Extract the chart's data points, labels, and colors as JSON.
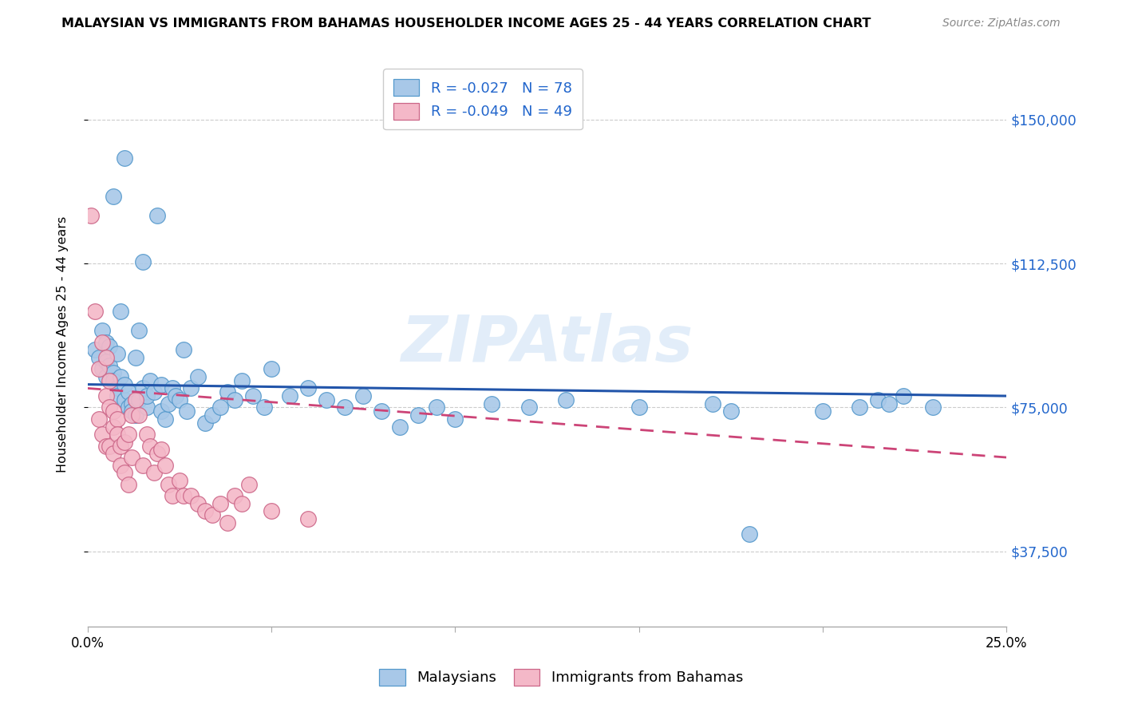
{
  "title": "MALAYSIAN VS IMMIGRANTS FROM BAHAMAS HOUSEHOLDER INCOME AGES 25 - 44 YEARS CORRELATION CHART",
  "source": "Source: ZipAtlas.com",
  "ylabel": "Householder Income Ages 25 - 44 years",
  "xlim": [
    0.0,
    0.25
  ],
  "ylim": [
    18000,
    165000
  ],
  "yticks": [
    37500,
    75000,
    112500,
    150000
  ],
  "ytick_labels": [
    "$37,500",
    "$75,000",
    "$112,500",
    "$150,000"
  ],
  "xticks": [
    0.0,
    0.05,
    0.1,
    0.15,
    0.2,
    0.25
  ],
  "xtick_labels": [
    "0.0%",
    "",
    "",
    "",
    "",
    "25.0%"
  ],
  "legend_R_blue": "-0.027",
  "legend_N_blue": "78",
  "legend_R_pink": "-0.049",
  "legend_N_pink": "49",
  "blue_color": "#a8c8e8",
  "blue_edge": "#5599cc",
  "pink_color": "#f4b8c8",
  "pink_edge": "#cc6688",
  "line_blue_color": "#2255aa",
  "line_pink_color": "#cc4477",
  "watermark": "ZIPAtlas",
  "blue_scatter_x": [
    0.002,
    0.003,
    0.004,
    0.004,
    0.005,
    0.005,
    0.005,
    0.006,
    0.006,
    0.007,
    0.007,
    0.007,
    0.008,
    0.008,
    0.008,
    0.009,
    0.009,
    0.01,
    0.01,
    0.01,
    0.011,
    0.011,
    0.012,
    0.012,
    0.013,
    0.013,
    0.014,
    0.014,
    0.015,
    0.015,
    0.016,
    0.016,
    0.017,
    0.018,
    0.019,
    0.02,
    0.02,
    0.021,
    0.022,
    0.023,
    0.024,
    0.025,
    0.026,
    0.027,
    0.028,
    0.03,
    0.032,
    0.034,
    0.036,
    0.038,
    0.04,
    0.042,
    0.045,
    0.048,
    0.05,
    0.055,
    0.06,
    0.065,
    0.07,
    0.075,
    0.08,
    0.085,
    0.09,
    0.095,
    0.1,
    0.11,
    0.12,
    0.13,
    0.15,
    0.17,
    0.175,
    0.18,
    0.2,
    0.21,
    0.215,
    0.218,
    0.222,
    0.23
  ],
  "blue_scatter_y": [
    90000,
    88000,
    95000,
    85000,
    92000,
    87000,
    83000,
    91000,
    86000,
    84000,
    130000,
    82000,
    80000,
    78000,
    89000,
    83000,
    100000,
    77000,
    81000,
    140000,
    79000,
    75000,
    76000,
    74000,
    73000,
    88000,
    95000,
    77000,
    113000,
    80000,
    75000,
    78000,
    82000,
    79000,
    125000,
    81000,
    74000,
    72000,
    76000,
    80000,
    78000,
    77000,
    90000,
    74000,
    80000,
    83000,
    71000,
    73000,
    75000,
    79000,
    77000,
    82000,
    78000,
    75000,
    85000,
    78000,
    80000,
    77000,
    75000,
    78000,
    74000,
    70000,
    73000,
    75000,
    72000,
    76000,
    75000,
    77000,
    75000,
    76000,
    74000,
    42000,
    74000,
    75000,
    77000,
    76000,
    78000,
    75000
  ],
  "pink_scatter_x": [
    0.001,
    0.002,
    0.003,
    0.003,
    0.004,
    0.004,
    0.005,
    0.005,
    0.005,
    0.006,
    0.006,
    0.006,
    0.007,
    0.007,
    0.007,
    0.008,
    0.008,
    0.009,
    0.009,
    0.01,
    0.01,
    0.011,
    0.011,
    0.012,
    0.012,
    0.013,
    0.014,
    0.015,
    0.016,
    0.017,
    0.018,
    0.019,
    0.02,
    0.021,
    0.022,
    0.023,
    0.025,
    0.026,
    0.028,
    0.03,
    0.032,
    0.034,
    0.036,
    0.038,
    0.04,
    0.042,
    0.044,
    0.05,
    0.06
  ],
  "pink_scatter_y": [
    125000,
    100000,
    85000,
    72000,
    92000,
    68000,
    88000,
    78000,
    65000,
    82000,
    75000,
    65000,
    70000,
    74000,
    63000,
    72000,
    68000,
    65000,
    60000,
    66000,
    58000,
    68000,
    55000,
    73000,
    62000,
    77000,
    73000,
    60000,
    68000,
    65000,
    58000,
    63000,
    64000,
    60000,
    55000,
    52000,
    56000,
    52000,
    52000,
    50000,
    48000,
    47000,
    50000,
    45000,
    52000,
    50000,
    55000,
    48000,
    46000
  ],
  "trendline_blue_x0": 0.0,
  "trendline_blue_y0": 81000,
  "trendline_blue_x1": 0.25,
  "trendline_blue_y1": 78000,
  "trendline_pink_x0": 0.0,
  "trendline_pink_y0": 80000,
  "trendline_pink_x1": 0.25,
  "trendline_pink_y1": 62000
}
